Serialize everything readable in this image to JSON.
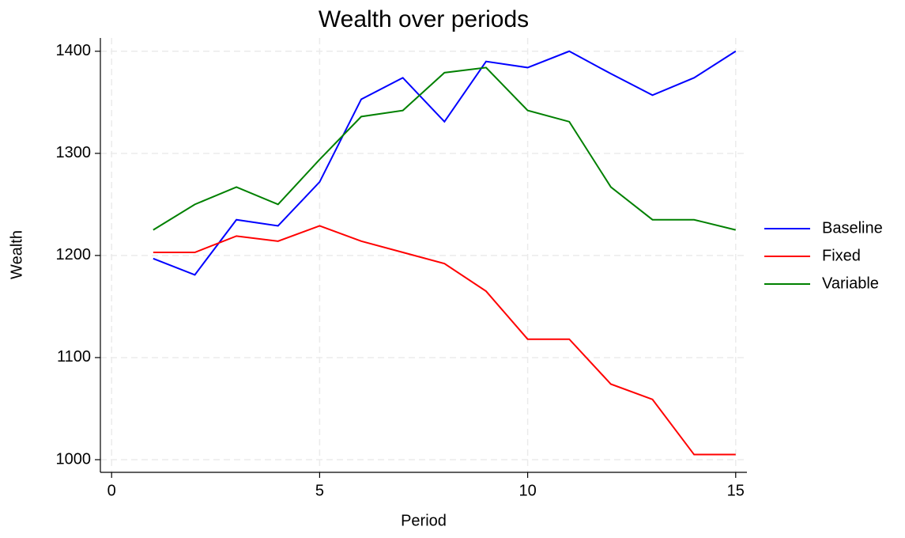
{
  "chart_data": {
    "type": "line",
    "title": "Wealth over periods",
    "x_label": "Period",
    "y_label": "Wealth",
    "x": [
      1,
      2,
      3,
      4,
      5,
      6,
      7,
      8,
      9,
      10,
      11,
      12,
      13,
      14,
      15
    ],
    "series": [
      {
        "name": "Baseline",
        "color": "#0000ff",
        "values": [
          1197,
          1181,
          1235,
          1229,
          1272,
          1353,
          1374,
          1331,
          1390,
          1384,
          1400,
          1378,
          1357,
          1374,
          1400
        ]
      },
      {
        "name": "Fixed",
        "color": "#ff0000",
        "values": [
          1203,
          1203,
          1219,
          1214,
          1229,
          1214,
          1203,
          1192,
          1165,
          1118,
          1118,
          1074,
          1059,
          1005,
          1005
        ]
      },
      {
        "name": "Variable",
        "color": "#008000",
        "values": [
          1225,
          1250,
          1267,
          1250,
          1294,
          1336,
          1342,
          1379,
          1384,
          1342,
          1331,
          1267,
          1235,
          1235,
          1225
        ]
      }
    ],
    "xlim": [
      -0.27,
      15.27
    ],
    "xticks": [
      0,
      5,
      10,
      15
    ],
    "ylim": [
      987.6,
      1413
    ],
    "yticks": [
      1000,
      1100,
      1200,
      1300,
      1400
    ],
    "grid": true,
    "legend": "right"
  }
}
